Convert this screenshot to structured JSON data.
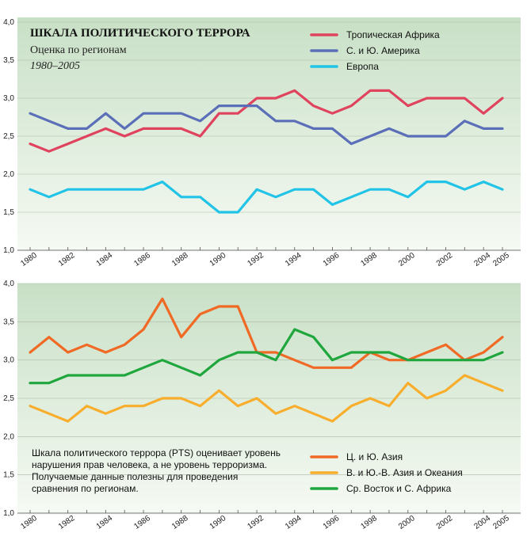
{
  "chart_data": [
    {
      "type": "line",
      "title": "ШКАЛА ПОЛИТИЧЕСКОГО ТЕРРОРА",
      "subtitle": "Оценка по регионам",
      "period": "1980–2005",
      "xlabel": "",
      "ylabel": "",
      "xlim": [
        1980,
        2005
      ],
      "ylim": [
        1.0,
        4.0
      ],
      "y_ticks": [
        "1,0",
        "1,5",
        "2,0",
        "2,5",
        "3,0",
        "3,5",
        "4,0"
      ],
      "x_ticks": [
        "1980",
        "1982",
        "1984",
        "1986",
        "1988",
        "1990",
        "1992",
        "1994",
        "1996",
        "1998",
        "2000",
        "2002",
        "2004",
        "2005"
      ],
      "x": [
        1980,
        1981,
        1982,
        1983,
        1984,
        1985,
        1986,
        1987,
        1988,
        1989,
        1990,
        1991,
        1992,
        1993,
        1994,
        1995,
        1996,
        1997,
        1998,
        1999,
        2000,
        2001,
        2002,
        2003,
        2004,
        2005
      ],
      "legend": "top-right",
      "grid": true,
      "series": [
        {
          "name": "Тропическая Африка",
          "color": "#e0435e",
          "values": [
            2.4,
            2.3,
            2.4,
            2.5,
            2.6,
            2.5,
            2.6,
            2.6,
            2.6,
            2.5,
            2.8,
            2.8,
            3.0,
            3.0,
            3.1,
            2.9,
            2.8,
            2.9,
            3.1,
            3.1,
            2.9,
            3.0,
            3.0,
            3.0,
            2.8,
            3.0
          ]
        },
        {
          "name": "С. и Ю. Америка",
          "color": "#5b6fb8",
          "values": [
            2.8,
            2.7,
            2.6,
            2.6,
            2.8,
            2.6,
            2.8,
            2.8,
            2.8,
            2.7,
            2.9,
            2.9,
            2.9,
            2.7,
            2.7,
            2.6,
            2.6,
            2.4,
            2.5,
            2.6,
            2.5,
            2.5,
            2.5,
            2.7,
            2.6,
            2.6
          ]
        },
        {
          "name": "Европа",
          "color": "#21c3e6",
          "values": [
            1.8,
            1.7,
            1.8,
            1.8,
            1.8,
            1.8,
            1.8,
            1.9,
            1.7,
            1.7,
            1.5,
            1.5,
            1.8,
            1.7,
            1.8,
            1.8,
            1.6,
            1.7,
            1.8,
            1.8,
            1.7,
            1.9,
            1.9,
            1.8,
            1.9,
            1.8
          ]
        }
      ]
    },
    {
      "type": "line",
      "xlabel": "",
      "ylabel": "",
      "xlim": [
        1980,
        2005
      ],
      "ylim": [
        1.0,
        4.0
      ],
      "y_ticks": [
        "1,0",
        "1,5",
        "2,0",
        "2,5",
        "3,0",
        "3,5",
        "4,0"
      ],
      "x_ticks": [
        "1980",
        "1982",
        "1984",
        "1986",
        "1988",
        "1990",
        "1992",
        "1994",
        "1996",
        "1998",
        "2000",
        "2002",
        "2004",
        "2005"
      ],
      "x": [
        1980,
        1981,
        1982,
        1983,
        1984,
        1985,
        1986,
        1987,
        1988,
        1989,
        1990,
        1991,
        1992,
        1993,
        1994,
        1995,
        1996,
        1997,
        1998,
        1999,
        2000,
        2001,
        2002,
        2003,
        2004,
        2005
      ],
      "legend": "bottom-right",
      "grid": true,
      "note": "Шкала политического террора (PTS) оценивает уровень нарушения прав человека, а не уровень терроризма. Получаемые данные полезны для проведения сравнения по регионам.",
      "series": [
        {
          "name": "Ц. и Ю. Азия",
          "color": "#f06a25",
          "values": [
            3.1,
            3.3,
            3.1,
            3.2,
            3.1,
            3.2,
            3.4,
            3.8,
            3.3,
            3.6,
            3.7,
            3.7,
            3.1,
            3.1,
            3.0,
            2.9,
            2.9,
            2.9,
            3.1,
            3.0,
            3.0,
            3.1,
            3.2,
            3.0,
            3.1,
            3.3
          ]
        },
        {
          "name": "В. и Ю.-В. Азия и Океания",
          "color": "#f8ae2c",
          "values": [
            2.4,
            2.3,
            2.2,
            2.4,
            2.3,
            2.4,
            2.4,
            2.5,
            2.5,
            2.4,
            2.6,
            2.4,
            2.5,
            2.3,
            2.4,
            2.3,
            2.2,
            2.4,
            2.5,
            2.4,
            2.7,
            2.5,
            2.6,
            2.8,
            2.7,
            2.6
          ]
        },
        {
          "name": "Ср. Восток и С. Африка",
          "color": "#1fa63c",
          "values": [
            2.7,
            2.7,
            2.8,
            2.8,
            2.8,
            2.8,
            2.9,
            3.0,
            2.9,
            2.8,
            3.0,
            3.1,
            3.1,
            3.0,
            3.4,
            3.3,
            3.0,
            3.1,
            3.1,
            3.1,
            3.0,
            3.0,
            3.0,
            3.0,
            3.0,
            3.1
          ]
        }
      ]
    }
  ]
}
